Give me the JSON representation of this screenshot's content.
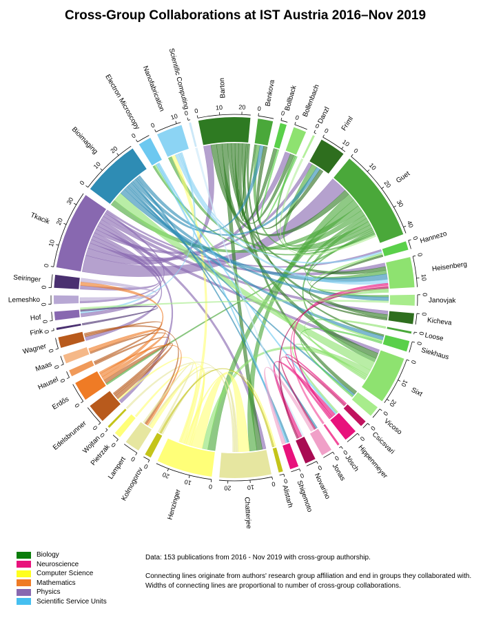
{
  "title": "Cross-Group Collaborations at IST Austria 2016–Nov 2019",
  "notes": [
    "Data: 153 publications from 2016 - Nov 2019 with cross-group authorship.",
    "",
    "Connecting lines originate from authors' research group affiliation and end in groups they collaborated with.",
    "Widths of connecting lines are proportional to number of cross-group collaborations."
  ],
  "legend": [
    {
      "label": "Biology",
      "color": "#0a7d0a"
    },
    {
      "label": "Neuroscience",
      "color": "#e8127c"
    },
    {
      "label": "Computer Science",
      "color": "#ffff1e"
    },
    {
      "label": "Mathematics",
      "color": "#ef7b25"
    },
    {
      "label": "Physics",
      "color": "#8868b0"
    },
    {
      "label": "Scientific Service Units",
      "color": "#45bff0"
    }
  ],
  "chart_data": {
    "type": "chord",
    "title": "Cross-Group Collaborations at IST Austria 2016–Nov 2019",
    "sector_order_clockwise": [
      "Barton",
      "Benkova",
      "Bollback",
      "Bollenbach",
      "Danzl",
      "Friml",
      "Guet",
      "Hannezo",
      "Heisenberg",
      "Janovjak",
      "Kicheva",
      "Loose",
      "Siekhaus",
      "Sixt",
      "Vicoso",
      "Csicsvari",
      "Hippenmeyer",
      "Jösch",
      "Jonas",
      "Novarino",
      "Shigemoto",
      "Alistarh",
      "Chatterjee",
      "Henzinger",
      "Kolmogorov",
      "Lampert",
      "Pietrzak",
      "Wojtan",
      "Edelsbrunner",
      "Erdős",
      "Hausel",
      "Maas",
      "Wagner",
      "Fink",
      "Hof",
      "Lemeshko",
      "Seiringer",
      "Tkacik",
      "Bioimaging",
      "Electron Microscopy",
      "Nanofabrication",
      "Scientific Computing"
    ],
    "sectors": [
      {
        "name": "Barton",
        "field": "Biology",
        "value": 24,
        "color": "#2e7a22",
        "ticks": [
          0,
          10,
          20
        ]
      },
      {
        "name": "Benkova",
        "field": "Biology",
        "value": 7,
        "color": "#4aa83a",
        "ticks": [
          0
        ]
      },
      {
        "name": "Bollback",
        "field": "Biology",
        "value": 3,
        "color": "#5ad04a",
        "ticks": [
          0
        ]
      },
      {
        "name": "Bollenbach",
        "field": "Biology",
        "value": 6,
        "color": "#8ee270",
        "ticks": [
          0
        ]
      },
      {
        "name": "Danzl",
        "field": "Biology",
        "value": 1,
        "color": "#b4ef9c",
        "ticks": [
          0
        ]
      },
      {
        "name": "Friml",
        "field": "Biology",
        "value": 12,
        "color": "#2e6e1e",
        "ticks": [
          0,
          10
        ]
      },
      {
        "name": "Guet",
        "field": "Biology",
        "value": 43,
        "color": "#4aa83a",
        "ticks": [
          0,
          10,
          20,
          30,
          40
        ]
      },
      {
        "name": "Hannezo",
        "field": "Biology",
        "value": 4,
        "color": "#5ad04a",
        "ticks": [
          0
        ]
      },
      {
        "name": "Heisenberg",
        "field": "Biology",
        "value": 14,
        "color": "#8ee270",
        "ticks": [
          0,
          10
        ]
      },
      {
        "name": "Janovjak",
        "field": "Biology",
        "value": 5,
        "color": "#a8ec8c",
        "ticks": [
          0
        ]
      },
      {
        "name": "Kicheva",
        "field": "Biology",
        "value": 5,
        "color": "#2e6e1e",
        "ticks": [
          0
        ]
      },
      {
        "name": "Loose",
        "field": "Biology",
        "value": 1,
        "color": "#4aa83a",
        "ticks": [
          0
        ]
      },
      {
        "name": "Siekhaus",
        "field": "Biology",
        "value": 5,
        "color": "#5ad04a",
        "ticks": [
          0
        ]
      },
      {
        "name": "Sixt",
        "field": "Biology",
        "value": 22,
        "color": "#8ee270",
        "ticks": [
          0,
          10,
          20
        ]
      },
      {
        "name": "Vicoso",
        "field": "Biology",
        "value": 5,
        "color": "#a8ec8c",
        "ticks": [
          0
        ]
      },
      {
        "name": "Csicsvari",
        "field": "Neuroscience",
        "value": 3,
        "color": "#c0125e",
        "ticks": [
          0
        ]
      },
      {
        "name": "Hippenmeyer",
        "field": "Neuroscience",
        "value": 6,
        "color": "#e8127c",
        "ticks": [
          0
        ]
      },
      {
        "name": "Jösch",
        "field": "Neuroscience",
        "value": 1,
        "color": "#f24c9a",
        "ticks": [
          0
        ]
      },
      {
        "name": "Jonas",
        "field": "Neuroscience",
        "value": 5,
        "color": "#f0a0c8",
        "ticks": [
          0
        ]
      },
      {
        "name": "Novarino",
        "field": "Neuroscience",
        "value": 5,
        "color": "#a80c52",
        "ticks": [
          0
        ]
      },
      {
        "name": "Shigemoto",
        "field": "Neuroscience",
        "value": 4,
        "color": "#e8127c",
        "ticks": [
          0
        ]
      },
      {
        "name": "Alistarh",
        "field": "Computer Science",
        "value": 2,
        "color": "#c4c41a",
        "ticks": [
          0
        ]
      },
      {
        "name": "Chatterjee",
        "field": "Computer Science",
        "value": 24,
        "color": "#e6e6a0",
        "ticks": [
          0,
          10,
          20
        ]
      },
      {
        "name": "Henzinger",
        "field": "Computer Science",
        "value": 26,
        "color": "#ffff78",
        "ticks": [
          0,
          10,
          20
        ]
      },
      {
        "name": "Kolmogorov",
        "field": "Computer Science",
        "value": 3,
        "color": "#c4c41a",
        "ticks": [
          0
        ]
      },
      {
        "name": "Lampert",
        "field": "Computer Science",
        "value": 7,
        "color": "#e6e6a0",
        "ticks": [
          0
        ]
      },
      {
        "name": "Pietrzak",
        "field": "Computer Science",
        "value": 3,
        "color": "#ffff78",
        "ticks": [
          0
        ]
      },
      {
        "name": "Wojtan",
        "field": "Computer Science",
        "value": 1,
        "color": "#c4c41a",
        "ticks": [
          0
        ]
      },
      {
        "name": "Edelsbrunner",
        "field": "Mathematics",
        "value": 9,
        "color": "#b85a1c",
        "ticks": [
          0
        ]
      },
      {
        "name": "Erdős",
        "field": "Mathematics",
        "value": 9,
        "color": "#ef7b25",
        "ticks": [
          0
        ]
      },
      {
        "name": "Hausel",
        "field": "Mathematics",
        "value": 3,
        "color": "#f09a5a",
        "ticks": [
          0
        ]
      },
      {
        "name": "Maas",
        "field": "Mathematics",
        "value": 4,
        "color": "#f5b888",
        "ticks": [
          0
        ]
      },
      {
        "name": "Wagner",
        "field": "Mathematics",
        "value": 5,
        "color": "#b85a1c",
        "ticks": [
          0
        ]
      },
      {
        "name": "Fink",
        "field": "Physics",
        "value": 1,
        "color": "#4a3070",
        "ticks": [
          0
        ]
      },
      {
        "name": "Hof",
        "field": "Physics",
        "value": 4,
        "color": "#8868b0",
        "ticks": [
          0
        ]
      },
      {
        "name": "Lemeshko",
        "field": "Physics",
        "value": 4,
        "color": "#b8a8d4",
        "ticks": [
          0
        ]
      },
      {
        "name": "Seiringer",
        "field": "Physics",
        "value": 6,
        "color": "#4a3070",
        "ticks": [
          0
        ]
      },
      {
        "name": "Tkacik",
        "field": "Physics",
        "value": 36,
        "color": "#8868b0",
        "ticks": [
          0,
          10,
          20,
          30
        ]
      },
      {
        "name": "Bioimaging",
        "field": "Scientific Service Units",
        "value": 27,
        "color": "#2e8cb4",
        "ticks": [
          0,
          10,
          20
        ]
      },
      {
        "name": "Electron Microscopy",
        "field": "Scientific Service Units",
        "value": 6,
        "color": "#6cc8f0",
        "ticks": [
          0
        ]
      },
      {
        "name": "Nanofabrication",
        "field": "Scientific Service Units",
        "value": 12,
        "color": "#8cd4f4",
        "ticks": [
          0,
          10
        ]
      },
      {
        "name": "Scientific Computing",
        "field": "Scientific Service Units",
        "value": 1,
        "color": "#cce8f8",
        "ticks": [
          0
        ]
      }
    ],
    "links": [
      {
        "from": "Tkacik",
        "to": "Guet",
        "value": 9
      },
      {
        "from": "Tkacik",
        "to": "Barton",
        "value": 4
      },
      {
        "from": "Tkacik",
        "to": "Bollenbach",
        "value": 3
      },
      {
        "from": "Tkacik",
        "to": "Seiringer",
        "value": 2
      },
      {
        "from": "Tkacik",
        "to": "Wagner",
        "value": 2
      },
      {
        "from": "Tkacik",
        "to": "Hof",
        "value": 2
      },
      {
        "from": "Tkacik",
        "to": "Friml",
        "value": 2
      },
      {
        "from": "Tkacik",
        "to": "Sixt",
        "value": 2
      },
      {
        "from": "Tkacik",
        "to": "Edelsbrunner",
        "value": 2
      },
      {
        "from": "Tkacik",
        "to": "Chatterjee",
        "value": 2
      },
      {
        "from": "Tkacik",
        "to": "Kicheva",
        "value": 2
      },
      {
        "from": "Tkacik",
        "to": "Heisenberg",
        "value": 2
      },
      {
        "from": "Tkacik",
        "to": "Lemeshko",
        "value": 1
      },
      {
        "from": "Tkacik",
        "to": "Hannezo",
        "value": 1
      },
      {
        "from": "Barton",
        "to": "Guet",
        "value": 3
      },
      {
        "from": "Barton",
        "to": "Sixt",
        "value": 3
      },
      {
        "from": "Barton",
        "to": "Chatterjee",
        "value": 3
      },
      {
        "from": "Barton",
        "to": "Heisenberg",
        "value": 2
      },
      {
        "from": "Barton",
        "to": "Kicheva",
        "value": 2
      },
      {
        "from": "Barton",
        "to": "Bollback",
        "value": 2
      },
      {
        "from": "Barton",
        "to": "Bollenbach",
        "value": 2
      },
      {
        "from": "Barton",
        "to": "Vicoso",
        "value": 2
      },
      {
        "from": "Barton",
        "to": "Benkova",
        "value": 1
      },
      {
        "from": "Barton",
        "to": "Siekhaus",
        "value": 1
      },
      {
        "from": "Guet",
        "to": "Chatterjee",
        "value": 4
      },
      {
        "from": "Guet",
        "to": "Henzinger",
        "value": 4
      },
      {
        "from": "Guet",
        "to": "Bioimaging",
        "value": 3
      },
      {
        "from": "Guet",
        "to": "Friml",
        "value": 3
      },
      {
        "from": "Guet",
        "to": "Heisenberg",
        "value": 2
      },
      {
        "from": "Guet",
        "to": "Sixt",
        "value": 2
      },
      {
        "from": "Guet",
        "to": "Nanofabrication",
        "value": 2
      },
      {
        "from": "Guet",
        "to": "Benkova",
        "value": 2
      },
      {
        "from": "Guet",
        "to": "Bollenbach",
        "value": 1
      },
      {
        "from": "Guet",
        "to": "Janovjak",
        "value": 1
      },
      {
        "from": "Guet",
        "to": "Erdős",
        "value": 1
      },
      {
        "from": "Guet",
        "to": "Electron Microscopy",
        "value": 1
      },
      {
        "from": "Sixt",
        "to": "Bioimaging",
        "value": 5
      },
      {
        "from": "Sixt",
        "to": "Henzinger",
        "value": 3
      },
      {
        "from": "Sixt",
        "to": "Hippenmeyer",
        "value": 1
      },
      {
        "from": "Sixt",
        "to": "Electron Microscopy",
        "value": 1
      },
      {
        "from": "Sixt",
        "to": "Loose",
        "value": 1
      },
      {
        "from": "Henzinger",
        "to": "Chatterjee",
        "value": 6
      },
      {
        "from": "Henzinger",
        "to": "Pietrzak",
        "value": 1
      },
      {
        "from": "Henzinger",
        "to": "Lampert",
        "value": 2
      },
      {
        "from": "Henzinger",
        "to": "Alistarh",
        "value": 1
      },
      {
        "from": "Henzinger",
        "to": "Nanofabrication",
        "value": 2
      },
      {
        "from": "Henzinger",
        "to": "Edelsbrunner",
        "value": 1
      },
      {
        "from": "Chatterjee",
        "to": "Lampert",
        "value": 1
      },
      {
        "from": "Chatterjee",
        "to": "Kolmogorov",
        "value": 1
      },
      {
        "from": "Chatterjee",
        "to": "Wojtan",
        "value": 1
      },
      {
        "from": "Bioimaging",
        "to": "Heisenberg",
        "value": 3
      },
      {
        "from": "Bioimaging",
        "to": "Siekhaus",
        "value": 2
      },
      {
        "from": "Bioimaging",
        "to": "Vicoso",
        "value": 1
      },
      {
        "from": "Bioimaging",
        "to": "Janovjak",
        "value": 2
      },
      {
        "from": "Bioimaging",
        "to": "Jonas",
        "value": 1
      },
      {
        "from": "Bioimaging",
        "to": "Benkova",
        "value": 2
      },
      {
        "from": "Bioimaging",
        "to": "Shigemoto",
        "value": 1
      },
      {
        "from": "Bioimaging",
        "to": "Friml",
        "value": 2
      },
      {
        "from": "Electron Microscopy",
        "to": "Shigemoto",
        "value": 1
      },
      {
        "from": "Electron Microscopy",
        "to": "Hippenmeyer",
        "value": 1
      },
      {
        "from": "Nanofabrication",
        "to": "Heisenberg",
        "value": 2
      },
      {
        "from": "Nanofabrication",
        "to": "Hannezo",
        "value": 1
      },
      {
        "from": "Nanofabrication",
        "to": "Hof",
        "value": 1
      },
      {
        "from": "Scientific Computing",
        "to": "Novarino",
        "value": 1
      },
      {
        "from": "Edelsbrunner",
        "to": "Erdős",
        "value": 2
      },
      {
        "from": "Edelsbrunner",
        "to": "Hausel",
        "value": 1
      },
      {
        "from": "Edelsbrunner",
        "to": "Maas",
        "value": 1
      },
      {
        "from": "Erdős",
        "to": "Maas",
        "value": 2
      },
      {
        "from": "Erdős",
        "to": "Seiringer",
        "value": 2
      },
      {
        "from": "Erdős",
        "to": "Lampert",
        "value": 1
      },
      {
        "from": "Wagner",
        "to": "Hausel",
        "value": 1
      },
      {
        "from": "Wagner",
        "to": "Lampert",
        "value": 1
      },
      {
        "from": "Lemeshko",
        "to": "Seiringer",
        "value": 2
      },
      {
        "from": "Fink",
        "to": "Hof",
        "value": 1
      },
      {
        "from": "Hippenmeyer",
        "to": "Novarino",
        "value": 2
      },
      {
        "from": "Hippenmeyer",
        "to": "Heisenberg",
        "value": 1
      },
      {
        "from": "Hippenmeyer",
        "to": "Csicsvari",
        "value": 1
      },
      {
        "from": "Csicsvari",
        "to": "Jonas",
        "value": 1
      },
      {
        "from": "Jonas",
        "to": "Shigemoto",
        "value": 2
      },
      {
        "from": "Jösch",
        "to": "Heisenberg",
        "value": 1
      },
      {
        "from": "Novarino",
        "to": "Heisenberg",
        "value": 1
      },
      {
        "from": "Heisenberg",
        "to": "Hannezo",
        "value": 1
      },
      {
        "from": "Heisenberg",
        "to": "Siekhaus",
        "value": 1
      },
      {
        "from": "Bollback",
        "to": "Bollenbach",
        "value": 1
      },
      {
        "from": "Danzl",
        "to": "Guet",
        "value": 1
      },
      {
        "from": "Kicheva",
        "to": "Hannezo",
        "value": 1
      },
      {
        "from": "Friml",
        "to": "Benkova",
        "value": 2
      },
      {
        "from": "Alistarh",
        "to": "Kolmogorov",
        "value": 1
      },
      {
        "from": "Lampert",
        "to": "Kolmogorov",
        "value": 1
      },
      {
        "from": "Janovjak",
        "to": "Hof",
        "value": 1
      },
      {
        "from": "Siekhaus",
        "to": "Vicoso",
        "value": 1
      }
    ]
  }
}
